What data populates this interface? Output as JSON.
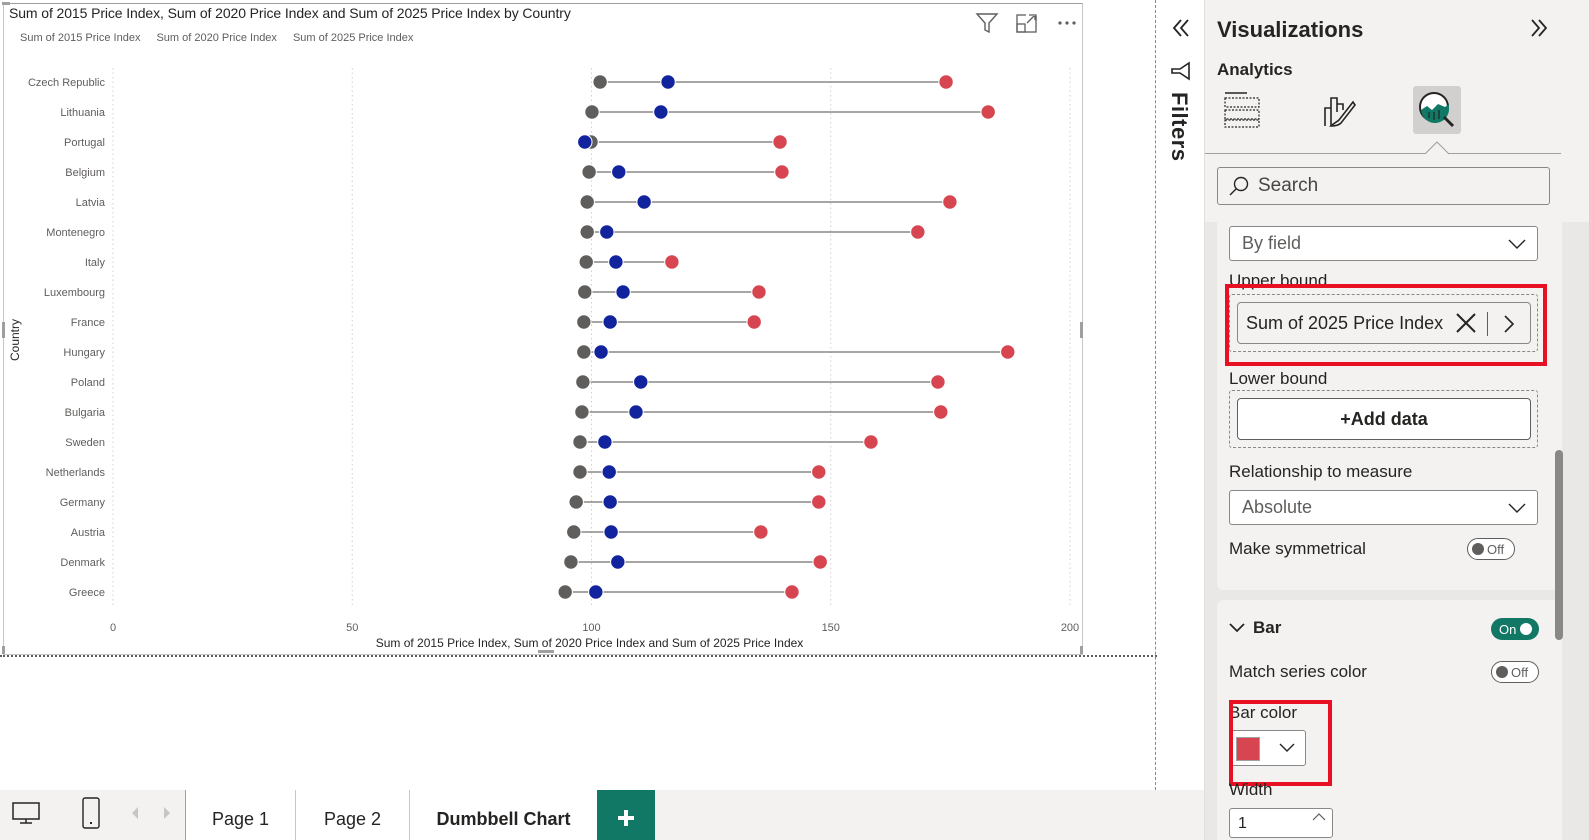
{
  "visual": {
    "title": "Sum of 2015 Price Index, Sum of 2020 Price Index and Sum of 2025 Price Index by Country",
    "header_icons": [
      "filter-icon",
      "focus-mode-icon",
      "more-options-icon"
    ]
  },
  "chart_data": {
    "type": "dumbbell",
    "title": "Sum of 2015 Price Index, Sum of 2020 Price Index and Sum of 2025 Price Index by Country",
    "xlabel": "Sum of 2015 Price Index, Sum of 2020 Price Index and Sum of 2025 Price Index",
    "ylabel": "Country",
    "xlim": [
      0,
      200
    ],
    "xticks": [
      0,
      50,
      100,
      150,
      200
    ],
    "xtick_labels": [
      "0",
      "50",
      "100",
      "150",
      "200"
    ],
    "grid": true,
    "legend_position": "top-left",
    "categories": [
      "Czech Republic",
      "Lithuania",
      "Portugal",
      "Belgium",
      "Latvia",
      "Montenegro",
      "Italy",
      "Luxembourg",
      "France",
      "Hungary",
      "Poland",
      "Bulgaria",
      "Sweden",
      "Netherlands",
      "Germany",
      "Austria",
      "Denmark",
      "Greece"
    ],
    "series": [
      {
        "name": "Sum of 2015 Price Index",
        "color": "#605e5c",
        "values": [
          101.8,
          100.1,
          99.9,
          99.5,
          99.1,
          99.1,
          98.9,
          98.6,
          98.4,
          98.4,
          98.2,
          98.0,
          97.6,
          97.6,
          96.8,
          96.3,
          95.7,
          94.5
        ]
      },
      {
        "name": "Sum of 2020 Price Index",
        "color": "#12239e",
        "values": [
          116.0,
          114.5,
          98.6,
          105.7,
          111.0,
          103.2,
          105.1,
          106.6,
          103.9,
          102.0,
          110.3,
          109.3,
          102.8,
          103.7,
          103.9,
          104.1,
          105.5,
          100.9
        ]
      },
      {
        "name": "Sum of 2025 Price Index",
        "color": "#d64550",
        "values": [
          174.1,
          182.9,
          139.4,
          139.8,
          174.9,
          168.2,
          116.8,
          135.0,
          134.0,
          187.0,
          172.4,
          173.0,
          158.4,
          147.5,
          147.5,
          135.4,
          147.8,
          141.9
        ]
      }
    ],
    "connector_color": "#8a8886"
  },
  "filters": {
    "label": "Filters"
  },
  "viz_pane": {
    "title": "Visualizations",
    "subtitle": "Analytics",
    "tabs": [
      "build-visual",
      "format-visual",
      "analytics"
    ],
    "active_tab": "analytics",
    "search_placeholder": "Search",
    "error_bars": {
      "options_value": "By field",
      "upper_bound_label": "Upper bound",
      "upper_bound_field": "Sum of 2025 Price Index",
      "lower_bound_label": "Lower bound",
      "lower_bound_add": "+Add data",
      "relationship_label": "Relationship to measure",
      "relationship_value": "Absolute",
      "symmetrical_label": "Make symmetrical",
      "symmetrical_state": "Off"
    },
    "bar": {
      "section_label": "Bar",
      "section_state": "On",
      "match_series_label": "Match series color",
      "match_series_state": "Off",
      "bar_color_label": "Bar color",
      "bar_color": "#d64550",
      "width_label": "Width",
      "width_value": "1"
    }
  },
  "pages": {
    "tabs": [
      {
        "label": "Page 1",
        "active": false
      },
      {
        "label": "Page 2",
        "active": false
      },
      {
        "label": "Dumbbell Chart",
        "active": true
      }
    ],
    "add_label": "+"
  }
}
